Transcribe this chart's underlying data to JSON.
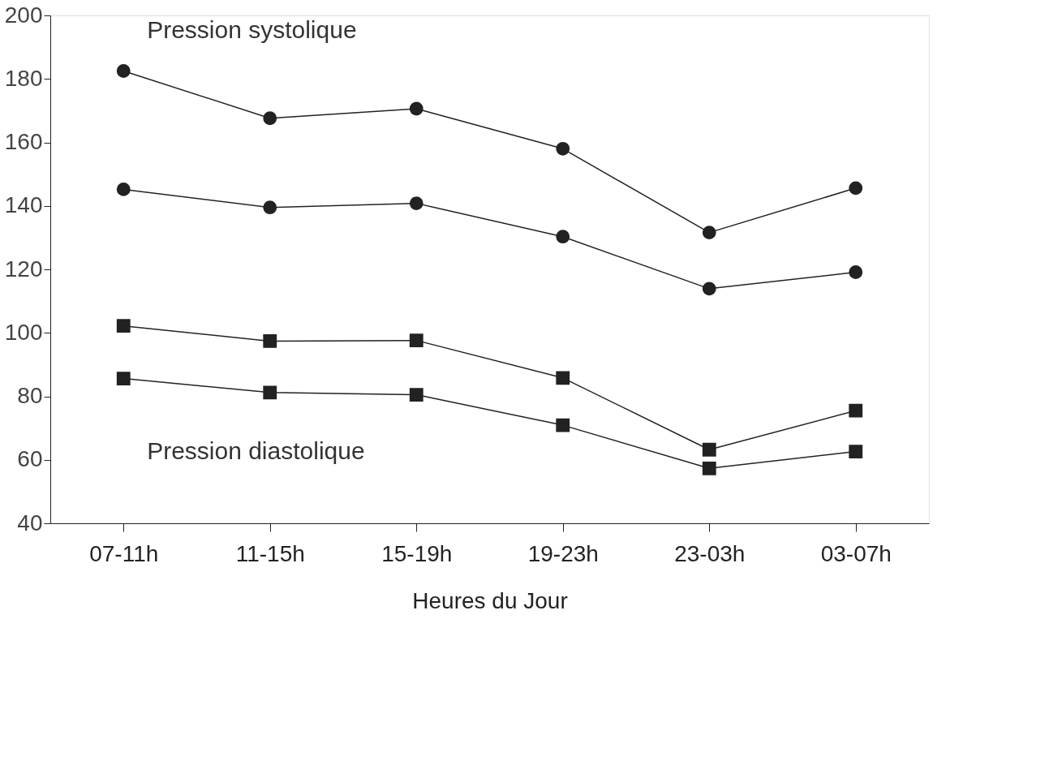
{
  "chart_data": {
    "type": "line",
    "xlabel": "Heures du Jour",
    "categories": [
      "07-11h",
      "11-15h",
      "15-19h",
      "19-23h",
      "23-03h",
      "03-07h"
    ],
    "series": [
      {
        "color": "#222222",
        "marker": "circle",
        "values": [
          182.5,
          167.6,
          170.6,
          158,
          131.6,
          145.6
        ]
      },
      {
        "color": "#222222",
        "marker": "circle",
        "values": [
          145.2,
          139.5,
          140.8,
          130.3,
          113.9,
          119.1
        ]
      },
      {
        "color": "#222222",
        "marker": "square",
        "values": [
          102.2,
          97.4,
          97.6,
          85.8,
          63.2,
          75.5
        ]
      },
      {
        "color": "#222222",
        "marker": "square",
        "values": [
          85.6,
          81.2,
          80.5,
          70.9,
          57.3,
          62.6
        ]
      }
    ],
    "ylim": [
      40,
      200
    ],
    "yticks": [
      40,
      60,
      80,
      100,
      120,
      140,
      160,
      180,
      200
    ],
    "annotations": [
      "Pression systolique",
      "Pression diastolique"
    ],
    "grid": false,
    "line_style": "solid"
  }
}
